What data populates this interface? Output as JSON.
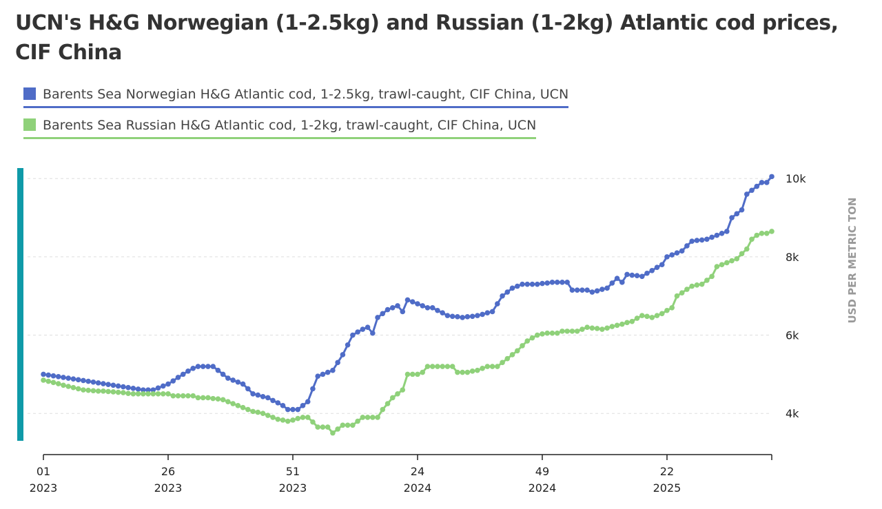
{
  "chart_data": {
    "type": "line",
    "title": "UCN's H&G Norwegian (1-2.5kg) and Russian (1-2kg) Atlantic cod prices, CIF China",
    "y_axis_label": "USD PER METRIC TON",
    "categories": [
      "01\n2023",
      null,
      null,
      null,
      null,
      null,
      null,
      null,
      null,
      null,
      null,
      null,
      null,
      null,
      null,
      null,
      null,
      null,
      null,
      null,
      null,
      null,
      null,
      null,
      null,
      "26\n2023",
      null,
      null,
      null,
      null,
      null,
      null,
      null,
      null,
      null,
      null,
      null,
      null,
      null,
      null,
      null,
      null,
      null,
      null,
      null,
      null,
      null,
      null,
      null,
      null,
      "51\n2023",
      null,
      null,
      null,
      null,
      null,
      null,
      null,
      null,
      null,
      null,
      null,
      null,
      null,
      null,
      null,
      null,
      null,
      null,
      null,
      null,
      null,
      null,
      null,
      null,
      "24\n2024",
      null,
      null,
      null,
      null,
      null,
      null,
      null,
      null,
      null,
      null,
      null,
      null,
      null,
      null,
      null,
      null,
      null,
      null,
      null,
      null,
      null,
      null,
      null,
      null,
      "49\n2024",
      null,
      null,
      null,
      null,
      null,
      null,
      null,
      null,
      null,
      null,
      null,
      null,
      null,
      null,
      null,
      null,
      null,
      null,
      null,
      null,
      null,
      null,
      null,
      null,
      "22\n2025",
      null,
      null,
      null,
      null,
      null,
      null,
      null,
      null,
      null,
      null,
      null,
      null,
      null,
      null,
      null,
      null,
      null,
      null,
      null,
      null,
      null
    ],
    "series": [
      {
        "name": "Barents Sea Norwegian H&G Atlantic cod, 1-2.5kg, trawl-caught, CIF China, UCN",
        "color": "#4f6cc7",
        "values": [
          5000,
          4980,
          4960,
          4940,
          4920,
          4900,
          4880,
          4860,
          4840,
          4820,
          4800,
          4780,
          4760,
          4740,
          4720,
          4700,
          4680,
          4660,
          4640,
          4620,
          4600,
          4600,
          4600,
          4650,
          4700,
          4750,
          4830,
          4920,
          5000,
          5080,
          5150,
          5200,
          5200,
          5200,
          5200,
          5100,
          5000,
          4900,
          4850,
          4800,
          4750,
          4630,
          4500,
          4470,
          4430,
          4400,
          4330,
          4270,
          4200,
          4100,
          4100,
          4100,
          4200,
          4300,
          4630,
          4950,
          5000,
          5050,
          5100,
          5300,
          5500,
          5750,
          6000,
          6080,
          6150,
          6200,
          6050,
          6450,
          6550,
          6650,
          6700,
          6750,
          6600,
          6900,
          6850,
          6800,
          6750,
          6700,
          6700,
          6630,
          6570,
          6500,
          6480,
          6470,
          6450,
          6470,
          6480,
          6500,
          6530,
          6570,
          6600,
          6800,
          7000,
          7100,
          7200,
          7250,
          7300,
          7300,
          7300,
          7300,
          7320,
          7330,
          7350,
          7350,
          7350,
          7350,
          7150,
          7150,
          7150,
          7150,
          7100,
          7130,
          7170,
          7200,
          7330,
          7450,
          7350,
          7550,
          7530,
          7520,
          7500,
          7580,
          7650,
          7730,
          7800,
          8000,
          8050,
          8100,
          8150,
          8280,
          8400,
          8420,
          8430,
          8450,
          8500,
          8550,
          8600,
          8650,
          9000,
          9100,
          9200,
          9600,
          9700,
          9800,
          9900,
          9900,
          10050
        ]
      },
      {
        "name": "Barents Sea Russian H&G Atlantic cod, 1-2kg, trawl-caught, CIF China, UCN",
        "color": "#8fd17a",
        "values": [
          4850,
          4820,
          4790,
          4760,
          4720,
          4690,
          4660,
          4630,
          4600,
          4590,
          4580,
          4570,
          4570,
          4560,
          4550,
          4540,
          4530,
          4510,
          4500,
          4500,
          4500,
          4500,
          4500,
          4500,
          4500,
          4500,
          4450,
          4450,
          4450,
          4450,
          4450,
          4400,
          4400,
          4400,
          4380,
          4370,
          4350,
          4300,
          4250,
          4200,
          4150,
          4100,
          4050,
          4030,
          4000,
          3950,
          3900,
          3850,
          3830,
          3800,
          3830,
          3870,
          3900,
          3900,
          3780,
          3650,
          3650,
          3650,
          3500,
          3600,
          3700,
          3700,
          3700,
          3800,
          3900,
          3900,
          3900,
          3900,
          4100,
          4250,
          4400,
          4500,
          4600,
          5000,
          5000,
          5000,
          5050,
          5200,
          5200,
          5200,
          5200,
          5200,
          5200,
          5050,
          5050,
          5050,
          5080,
          5100,
          5150,
          5200,
          5200,
          5200,
          5300,
          5400,
          5500,
          5600,
          5730,
          5850,
          5930,
          6000,
          6030,
          6050,
          6050,
          6050,
          6100,
          6100,
          6100,
          6100,
          6150,
          6200,
          6180,
          6170,
          6150,
          6180,
          6220,
          6250,
          6280,
          6320,
          6350,
          6430,
          6500,
          6480,
          6450,
          6500,
          6550,
          6630,
          6700,
          7000,
          7080,
          7170,
          7250,
          7280,
          7300,
          7400,
          7500,
          7750,
          7800,
          7850,
          7900,
          7950,
          8080,
          8200,
          8450,
          8550,
          8600,
          8600,
          8650
        ]
      }
    ],
    "ylim": [
      3300,
      10250
    ],
    "yticks": [
      {
        "value": 4000,
        "label": "4k"
      },
      {
        "value": 6000,
        "label": "6k"
      },
      {
        "value": 8000,
        "label": "8k"
      },
      {
        "value": 10000,
        "label": "10k"
      }
    ],
    "grid": true
  }
}
